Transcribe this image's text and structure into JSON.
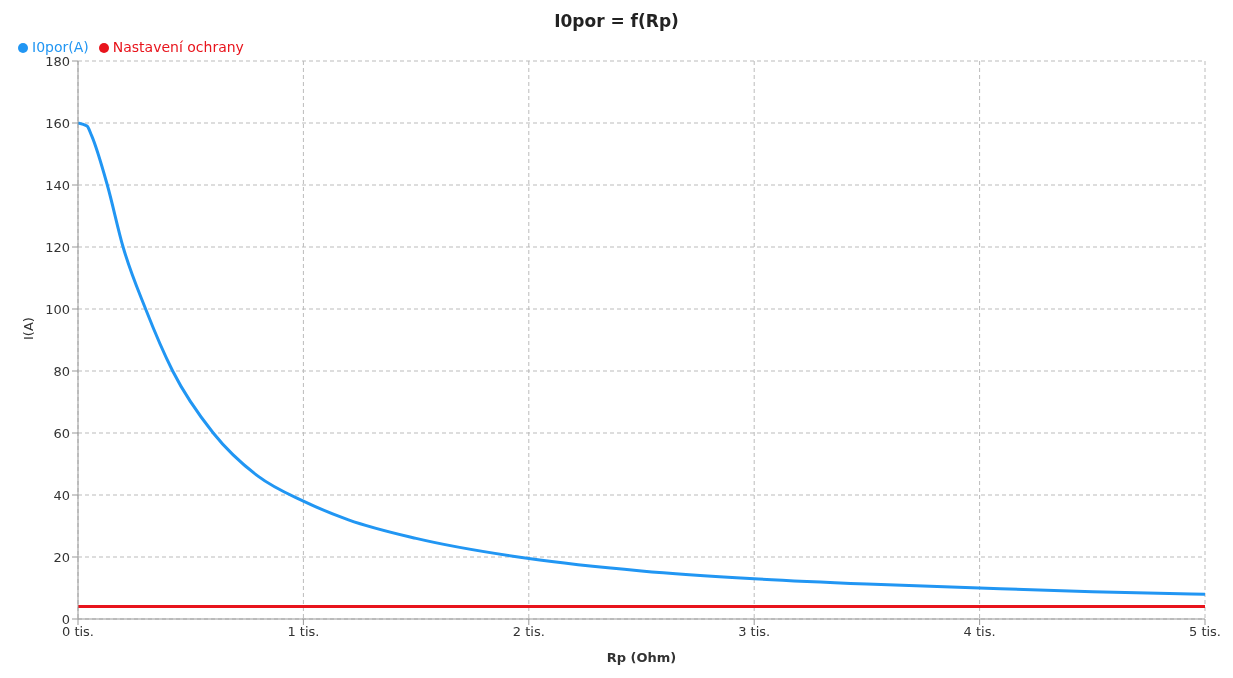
{
  "chart_data": {
    "type": "line",
    "title": "I0por = f(Rp)",
    "xlabel": "Rp (Ohm)",
    "ylabel": "I(A)",
    "xlim": [
      0,
      5
    ],
    "xticks": [
      {
        "value": 0,
        "label": "0 tis."
      },
      {
        "value": 1,
        "label": "1 tis."
      },
      {
        "value": 2,
        "label": "2 tis."
      },
      {
        "value": 3,
        "label": "3 tis."
      },
      {
        "value": 4,
        "label": "4 tis."
      },
      {
        "value": 5,
        "label": "5 tis."
      }
    ],
    "ylim": [
      0,
      180
    ],
    "yticks": [
      0,
      20,
      40,
      60,
      80,
      100,
      120,
      140,
      160,
      180
    ],
    "grid": true,
    "legend": "top left",
    "marker": "none",
    "line_style": "solid",
    "series": [
      {
        "name": "I0por(A)",
        "color": "#2196f3",
        "x": [
          0,
          0.04,
          0.06,
          0.13,
          0.2,
          0.3,
          0.42,
          0.6,
          0.8,
          1,
          1.2,
          1.5,
          2,
          2.5,
          3,
          3.5,
          4,
          4.5,
          5
        ],
        "values": [
          160,
          159,
          156,
          140,
          120,
          100,
          80,
          60,
          46,
          38,
          32,
          26,
          19.5,
          15.5,
          13,
          11.3,
          10,
          8.8,
          8
        ]
      },
      {
        "name": "Nastavení ochrany",
        "color": "#e8141c",
        "x": [
          0,
          5
        ],
        "values": [
          4,
          4
        ]
      }
    ]
  }
}
